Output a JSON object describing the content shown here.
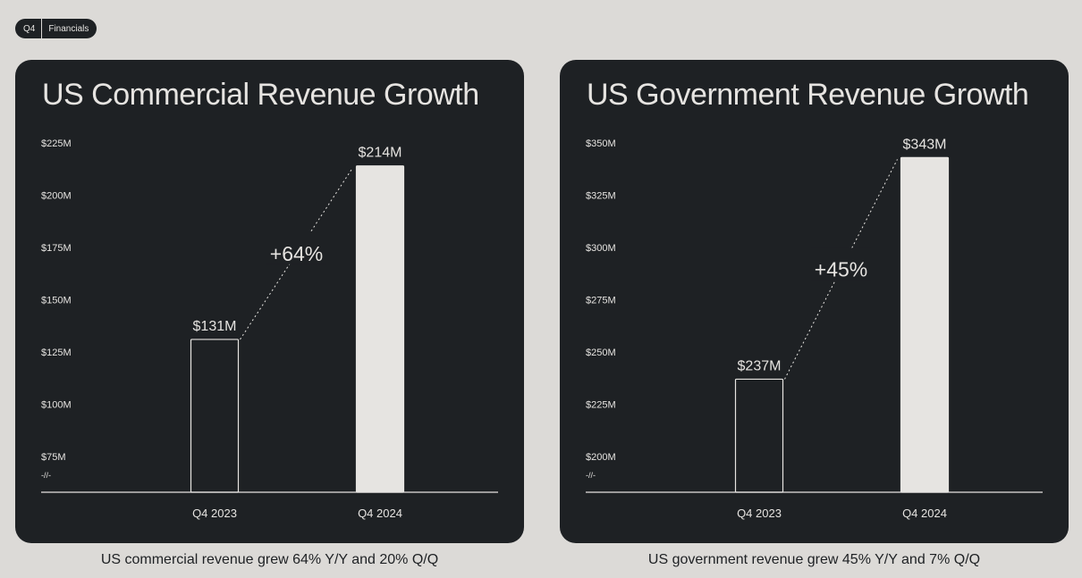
{
  "badge": {
    "quarter": "Q4",
    "section": "Financials"
  },
  "colors": {
    "page_bg": "#dcdad7",
    "card_bg": "#1e2124",
    "ink": "#e6e4e1"
  },
  "chart_data": [
    {
      "type": "bar",
      "title": "US Commercial Revenue Growth",
      "categories": [
        "Q4 2023",
        "Q4 2024"
      ],
      "values": [
        131,
        214
      ],
      "value_labels": [
        "$131M",
        "$214M"
      ],
      "growth_label": "+64%",
      "yticks": [
        75,
        100,
        125,
        150,
        175,
        200,
        225
      ],
      "ytick_labels": [
        "$75M",
        "$100M",
        "$125M",
        "$150M",
        "$175M",
        "$200M",
        "$225M"
      ],
      "ylim": [
        75,
        225
      ],
      "axis_break": "-//-",
      "caption": "US commercial revenue grew 64% Y/Y and 20% Q/Q"
    },
    {
      "type": "bar",
      "title": "US Government Revenue Growth",
      "categories": [
        "Q4 2023",
        "Q4 2024"
      ],
      "values": [
        237,
        343
      ],
      "value_labels": [
        "$237M",
        "$343M"
      ],
      "growth_label": "+45%",
      "yticks": [
        200,
        225,
        250,
        275,
        300,
        325,
        350
      ],
      "ytick_labels": [
        "$200M",
        "$225M",
        "$250M",
        "$275M",
        "$300M",
        "$325M",
        "$350M"
      ],
      "ylim": [
        200,
        350
      ],
      "axis_break": "-//-",
      "caption": "US government revenue grew 45% Y/Y and 7% Q/Q"
    }
  ]
}
